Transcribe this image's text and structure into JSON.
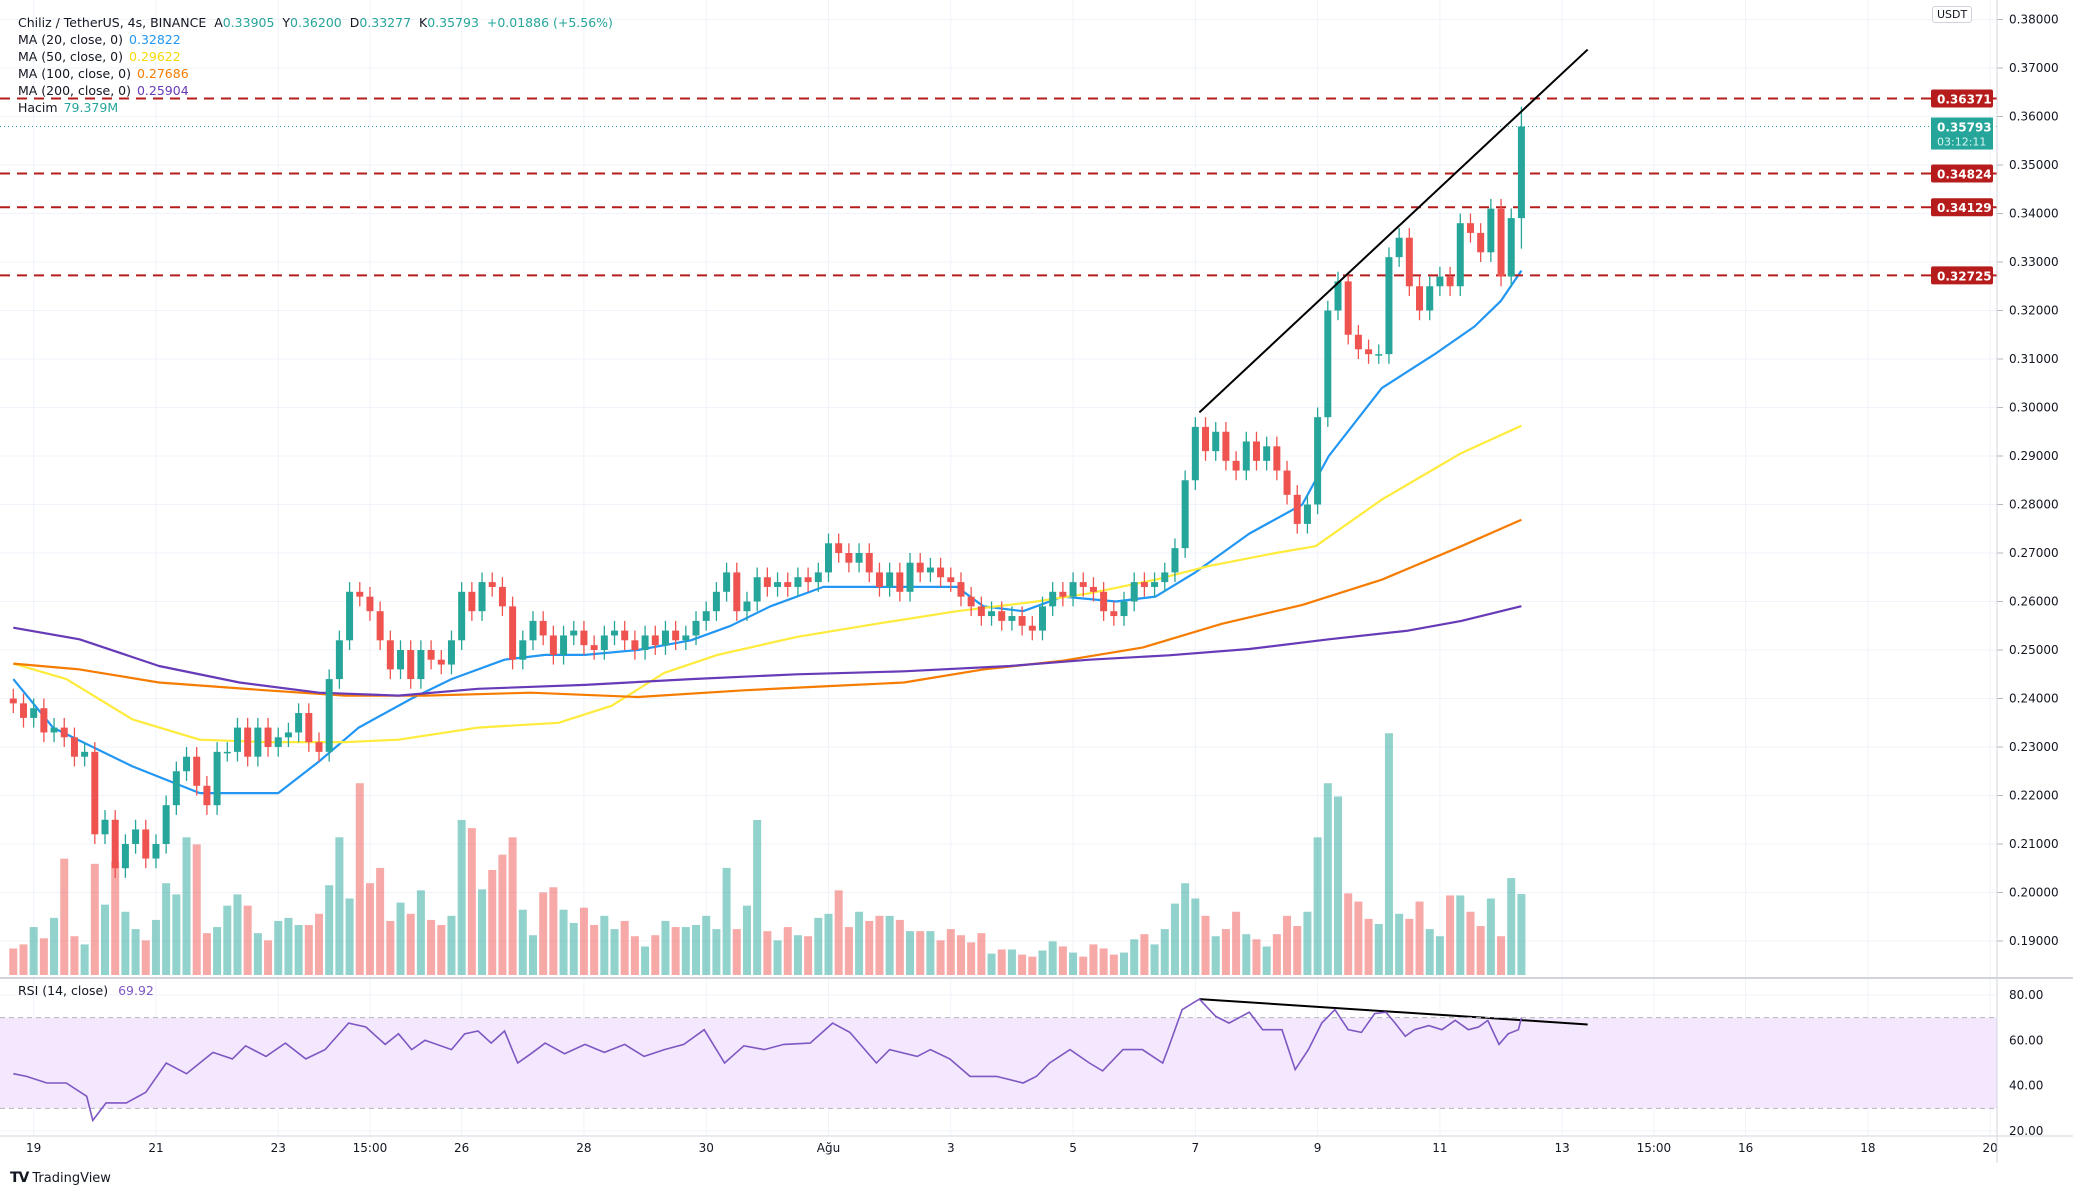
{
  "header": {
    "symbol": "Chiliz / TetherUS, 4s, BINANCE",
    "open_label": "A",
    "open": "0.33905",
    "high_label": "Y",
    "high": "0.36200",
    "low_label": "D",
    "low": "0.33277",
    "close_label": "K",
    "close": "0.35793",
    "change": "+0.01886 (+5.56%)"
  },
  "indicators": [
    {
      "label": "MA (20, close, 0)",
      "value": "0.32822",
      "color": "#2196f3"
    },
    {
      "label": "MA (50, close, 0)",
      "value": "0.29622",
      "color": "#ffeb3b"
    },
    {
      "label": "MA (100, close, 0)",
      "value": "0.27686",
      "color": "#f57c00"
    },
    {
      "label": "MA (200, close, 0)",
      "value": "0.25904",
      "color": "#673ab7"
    }
  ],
  "volume": {
    "label": "Hacim",
    "value": "79.379M"
  },
  "rsi": {
    "label": "RSI (14, close)",
    "value": "69.92",
    "color": "#7e57c2"
  },
  "currency_badge": "USDT",
  "last_price_tag": {
    "price": "0.35793",
    "countdown": "03:12:11"
  },
  "level_tags": [
    "0.36371",
    "0.34824",
    "0.34129",
    "0.32725"
  ],
  "branding": "TradingView",
  "colors": {
    "up": "#26a69a",
    "down": "#ef5350",
    "level": "#b71c1c",
    "grid": "#f0f3fa"
  },
  "chart_data": {
    "type": "candlestick",
    "title": "Chiliz / TetherUS, 4s, BINANCE",
    "price_axis": {
      "ticks": [
        "0.19000",
        "0.20000",
        "0.21000",
        "0.22000",
        "0.23000",
        "0.24000",
        "0.25000",
        "0.26000",
        "0.27000",
        "0.28000",
        "0.29000",
        "0.30000",
        "0.31000",
        "0.32000",
        "0.33000",
        "0.34000",
        "0.35000",
        "0.36000",
        "0.37000",
        "0.38000"
      ],
      "range": [
        0.185,
        0.382
      ]
    },
    "time_axis": {
      "labels": [
        "19",
        "21",
        "23",
        "15:00",
        "26",
        "28",
        "30",
        "Ağu",
        "3",
        "5",
        "7",
        "9",
        "11",
        "13",
        "15:00",
        "16",
        "18",
        "20"
      ],
      "label_candle_index": [
        2,
        14,
        26,
        35,
        44,
        56,
        68,
        80,
        92,
        104,
        116,
        128,
        140,
        152,
        161,
        170,
        182,
        194
      ]
    },
    "close": [
      0.239,
      0.236,
      0.238,
      0.233,
      0.234,
      0.232,
      0.228,
      0.229,
      0.212,
      0.215,
      0.205,
      0.21,
      0.213,
      0.207,
      0.21,
      0.218,
      0.225,
      0.228,
      0.222,
      0.218,
      0.229,
      0.229,
      0.234,
      0.228,
      0.234,
      0.23,
      0.232,
      0.233,
      0.237,
      0.231,
      0.229,
      0.244,
      0.252,
      0.262,
      0.261,
      0.258,
      0.252,
      0.246,
      0.25,
      0.244,
      0.25,
      0.248,
      0.247,
      0.252,
      0.262,
      0.258,
      0.264,
      0.263,
      0.259,
      0.248,
      0.252,
      0.256,
      0.253,
      0.249,
      0.253,
      0.254,
      0.251,
      0.25,
      0.253,
      0.254,
      0.252,
      0.25,
      0.253,
      0.251,
      0.254,
      0.252,
      0.253,
      0.256,
      0.258,
      0.262,
      0.266,
      0.258,
      0.26,
      0.265,
      0.263,
      0.264,
      0.263,
      0.265,
      0.264,
      0.266,
      0.272,
      0.27,
      0.268,
      0.27,
      0.266,
      0.263,
      0.266,
      0.262,
      0.268,
      0.266,
      0.267,
      0.265,
      0.264,
      0.261,
      0.259,
      0.257,
      0.258,
      0.256,
      0.257,
      0.255,
      0.254,
      0.259,
      0.262,
      0.261,
      0.264,
      0.263,
      0.262,
      0.258,
      0.257,
      0.26,
      0.264,
      0.263,
      0.264,
      0.266,
      0.271,
      0.285,
      0.296,
      0.291,
      0.295,
      0.289,
      0.287,
      0.293,
      0.289,
      0.292,
      0.287,
      0.282,
      0.276,
      0.28,
      0.298,
      0.32,
      0.326,
      0.315,
      0.312,
      0.311,
      0.311,
      0.331,
      0.335,
      0.325,
      0.32,
      0.325,
      0.327,
      0.325,
      0.338,
      0.336,
      0.332,
      0.341,
      0.327,
      0.33905,
      0.35793
    ],
    "last_candle": {
      "open": 0.33905,
      "high": 0.362,
      "low": 0.33277,
      "close": 0.35793
    },
    "volume_millions": [
      26,
      30,
      47,
      36,
      56,
      114,
      38,
      30,
      109,
      69,
      111,
      62,
      45,
      34,
      54,
      90,
      79,
      135,
      128,
      41,
      47,
      68,
      79,
      68,
      41,
      34,
      53,
      56,
      49,
      49,
      60,
      88,
      135,
      75,
      188,
      90,
      105,
      53,
      71,
      60,
      83,
      54,
      49,
      58,
      152,
      144,
      84,
      103,
      118,
      135,
      64,
      39,
      81,
      86,
      64,
      51,
      66,
      49,
      58,
      45,
      53,
      38,
      28,
      39,
      53,
      47,
      47,
      49,
      58,
      45,
      105,
      45,
      68,
      152,
      43,
      34,
      47,
      39,
      38,
      56,
      60,
      83,
      47,
      62,
      53,
      58,
      58,
      54,
      43,
      43,
      43,
      34,
      45,
      39,
      32,
      41,
      21,
      25,
      25,
      20,
      18,
      24,
      33,
      28,
      22,
      18,
      30,
      26,
      20,
      22,
      35,
      40,
      30,
      45,
      70,
      90,
      75,
      58,
      38,
      45,
      62,
      40,
      35,
      28,
      40,
      58,
      48,
      62,
      135,
      188,
      175,
      80,
      72,
      55,
      50,
      237,
      60,
      55,
      72,
      45,
      38,
      78,
      78,
      62,
      48,
      75,
      38,
      95,
      79.379
    ],
    "ma20": [
      [
        0,
        0.244
      ],
      [
        3.9,
        0.234
      ],
      [
        11.7,
        0.226
      ],
      [
        18.3,
        0.2205
      ],
      [
        26,
        0.2205
      ],
      [
        30,
        0.227
      ],
      [
        33.9,
        0.234
      ],
      [
        39.1,
        0.24
      ],
      [
        43,
        0.244
      ],
      [
        48.2,
        0.248
      ],
      [
        52.2,
        0.249
      ],
      [
        56.1,
        0.249
      ],
      [
        61.3,
        0.25
      ],
      [
        66.5,
        0.252
      ],
      [
        70.4,
        0.255
      ],
      [
        74.3,
        0.259
      ],
      [
        79.5,
        0.263
      ],
      [
        84.7,
        0.263
      ],
      [
        92.6,
        0.263
      ],
      [
        95.2,
        0.259
      ],
      [
        99.1,
        0.258
      ],
      [
        103,
        0.261
      ],
      [
        108.2,
        0.26
      ],
      [
        112.1,
        0.261
      ],
      [
        116,
        0.266
      ],
      [
        121.3,
        0.274
      ],
      [
        126.5,
        0.28
      ],
      [
        129.1,
        0.29
      ],
      [
        134.3,
        0.304
      ],
      [
        139.5,
        0.311
      ],
      [
        143.4,
        0.3167
      ],
      [
        146,
        0.322
      ],
      [
        148,
        0.32822
      ]
    ],
    "ma50": [
      [
        0,
        0.2472
      ],
      [
        5.2,
        0.244
      ],
      [
        11.7,
        0.2357
      ],
      [
        18.3,
        0.2315
      ],
      [
        24.8,
        0.231
      ],
      [
        32.6,
        0.231
      ],
      [
        37.8,
        0.2315
      ],
      [
        45.6,
        0.234
      ],
      [
        53.5,
        0.235
      ],
      [
        58.7,
        0.2385
      ],
      [
        63.9,
        0.2453
      ],
      [
        69.1,
        0.249
      ],
      [
        76.9,
        0.2527
      ],
      [
        84.7,
        0.2554
      ],
      [
        92.6,
        0.258
      ],
      [
        100.4,
        0.26
      ],
      [
        105.6,
        0.2617
      ],
      [
        112.1,
        0.2645
      ],
      [
        117.3,
        0.2673
      ],
      [
        123.9,
        0.27
      ],
      [
        127.8,
        0.2714
      ],
      [
        134.3,
        0.281
      ],
      [
        142.1,
        0.2906
      ],
      [
        148,
        0.29622
      ]
    ],
    "ma100": [
      [
        0,
        0.2472
      ],
      [
        6.5,
        0.246
      ],
      [
        14.3,
        0.2433
      ],
      [
        24.8,
        0.2417
      ],
      [
        32.6,
        0.2406
      ],
      [
        40.4,
        0.2406
      ],
      [
        50.8,
        0.2412
      ],
      [
        61.3,
        0.2403
      ],
      [
        71.7,
        0.2417
      ],
      [
        79.5,
        0.2425
      ],
      [
        87.4,
        0.2433
      ],
      [
        95.2,
        0.246
      ],
      [
        103,
        0.2478
      ],
      [
        110.8,
        0.2505
      ],
      [
        118.6,
        0.2554
      ],
      [
        126.5,
        0.2593
      ],
      [
        134.3,
        0.2645
      ],
      [
        142.1,
        0.2714
      ],
      [
        148,
        0.27686
      ]
    ],
    "ma200": [
      [
        0,
        0.2546
      ],
      [
        6.5,
        0.2522
      ],
      [
        14.3,
        0.2467
      ],
      [
        22.2,
        0.2433
      ],
      [
        30,
        0.2412
      ],
      [
        37.8,
        0.2406
      ],
      [
        45.6,
        0.242
      ],
      [
        56.1,
        0.2428
      ],
      [
        66.5,
        0.244
      ],
      [
        76.9,
        0.245
      ],
      [
        87.4,
        0.2456
      ],
      [
        97.8,
        0.2467
      ],
      [
        105.6,
        0.248
      ],
      [
        113.4,
        0.2489
      ],
      [
        121.3,
        0.2502
      ],
      [
        129.1,
        0.2522
      ],
      [
        136.9,
        0.254
      ],
      [
        142.1,
        0.256
      ],
      [
        148,
        0.25904
      ]
    ],
    "horizontal_levels": [
      0.36371,
      0.34824,
      0.34129,
      0.32725
    ],
    "price_trendline": [
      [
        116.4,
        0.299
      ],
      [
        154.5,
        0.3738
      ]
    ],
    "rsi_axis": {
      "ticks": [
        "80.00",
        "60.00",
        "40.00",
        "20.00"
      ],
      "band": [
        30,
        70
      ],
      "range": [
        17,
        86
      ]
    },
    "rsi_points": [
      [
        0,
        45.3
      ],
      [
        1.3,
        44.1
      ],
      [
        3.3,
        41.2
      ],
      [
        5.2,
        41.2
      ],
      [
        7.2,
        35.3
      ],
      [
        7.8,
        24.7
      ],
      [
        9.1,
        32.4
      ],
      [
        11.1,
        32.4
      ],
      [
        13,
        37.1
      ],
      [
        15,
        50
      ],
      [
        17,
        45.3
      ],
      [
        18.3,
        50
      ],
      [
        19.6,
        54.7
      ],
      [
        21.5,
        51.8
      ],
      [
        22.8,
        57.6
      ],
      [
        24.8,
        52.9
      ],
      [
        26.7,
        58.8
      ],
      [
        28.7,
        51.8
      ],
      [
        30.6,
        55.9
      ],
      [
        32.9,
        67.6
      ],
      [
        34.6,
        65.9
      ],
      [
        36.5,
        58.2
      ],
      [
        37.8,
        62.9
      ],
      [
        39.1,
        55.9
      ],
      [
        40.4,
        60
      ],
      [
        43,
        55.9
      ],
      [
        44.3,
        62.9
      ],
      [
        45.6,
        64.1
      ],
      [
        46.9,
        58.8
      ],
      [
        48.2,
        64.1
      ],
      [
        49.5,
        50
      ],
      [
        50.8,
        54.1
      ],
      [
        52.2,
        58.8
      ],
      [
        54.1,
        54.1
      ],
      [
        56.1,
        58.2
      ],
      [
        58,
        54.7
      ],
      [
        60,
        58.2
      ],
      [
        61.9,
        52.9
      ],
      [
        63.9,
        55.9
      ],
      [
        65.8,
        58.2
      ],
      [
        67.8,
        64.7
      ],
      [
        69.8,
        50
      ],
      [
        71.7,
        57.6
      ],
      [
        73.7,
        55.9
      ],
      [
        75.6,
        58.2
      ],
      [
        78.2,
        58.8
      ],
      [
        80.4,
        67.6
      ],
      [
        82.1,
        63.5
      ],
      [
        84.7,
        50
      ],
      [
        86,
        55.9
      ],
      [
        88.7,
        52.9
      ],
      [
        90,
        55.9
      ],
      [
        91.9,
        51.8
      ],
      [
        93.9,
        44.1
      ],
      [
        96.5,
        44.1
      ],
      [
        99.1,
        41.2
      ],
      [
        100.4,
        44.1
      ],
      [
        101.7,
        50
      ],
      [
        103.7,
        55.9
      ],
      [
        105.6,
        50
      ],
      [
        106.9,
        46.5
      ],
      [
        108.9,
        55.9
      ],
      [
        110.8,
        55.9
      ],
      [
        112.8,
        50
      ],
      [
        113.4,
        57.1
      ],
      [
        114.7,
        73.5
      ],
      [
        116.4,
        78.2
      ],
      [
        118,
        70.6
      ],
      [
        119.3,
        67.6
      ],
      [
        121.3,
        72.4
      ],
      [
        122.6,
        64.7
      ],
      [
        124.5,
        64.7
      ],
      [
        125.8,
        47.1
      ],
      [
        127.1,
        55.9
      ],
      [
        128.4,
        67.6
      ],
      [
        129.7,
        73.5
      ],
      [
        131,
        64.7
      ],
      [
        132.3,
        63.5
      ],
      [
        133.6,
        71.8
      ],
      [
        134.7,
        72.4
      ],
      [
        135.6,
        67.6
      ],
      [
        136.6,
        61.8
      ],
      [
        137.5,
        64.7
      ],
      [
        138.9,
        66.5
      ],
      [
        140.2,
        64.7
      ],
      [
        141.5,
        68.8
      ],
      [
        142.8,
        64.7
      ],
      [
        143.8,
        65.9
      ],
      [
        144.7,
        68.8
      ],
      [
        145.8,
        58.2
      ],
      [
        146.7,
        62.9
      ],
      [
        147.7,
        64.7
      ],
      [
        148,
        69.92
      ]
    ],
    "rsi_trendline": [
      [
        116.4,
        78.2
      ],
      [
        154.5,
        67
      ]
    ]
  }
}
